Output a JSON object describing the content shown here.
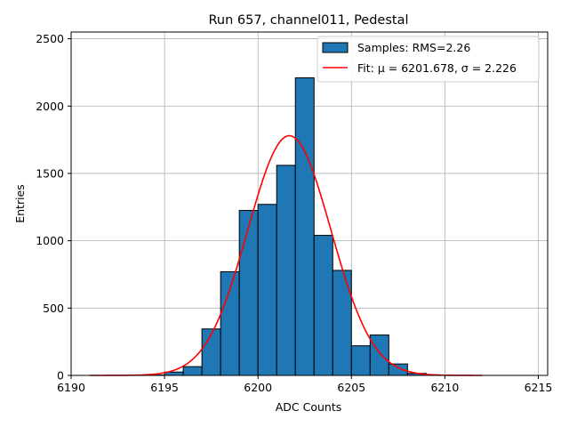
{
  "chart_data": {
    "type": "bar",
    "title": "Run 657, channel011, Pedestal",
    "xlabel": "ADC Counts",
    "ylabel": "Entries",
    "xlim": [
      6190,
      6215.5
    ],
    "ylim": [
      0,
      2550
    ],
    "xticks": [
      6190,
      6195,
      6200,
      6205,
      6210,
      6215
    ],
    "yticks": [
      0,
      500,
      1000,
      1500,
      2000,
      2500
    ],
    "grid": true,
    "legend_position": "top-right",
    "bin_width": 1,
    "bins": [
      {
        "left": 6191,
        "value": 0
      },
      {
        "left": 6192,
        "value": 0
      },
      {
        "left": 6193,
        "value": 0
      },
      {
        "left": 6194,
        "value": 3
      },
      {
        "left": 6195,
        "value": 25
      },
      {
        "left": 6196,
        "value": 65
      },
      {
        "left": 6197,
        "value": 345
      },
      {
        "left": 6198,
        "value": 770
      },
      {
        "left": 6199,
        "value": 1225
      },
      {
        "left": 6200,
        "value": 1270
      },
      {
        "left": 6201,
        "value": 1560
      },
      {
        "left": 6202,
        "value": 2210
      },
      {
        "left": 6203,
        "value": 1040
      },
      {
        "left": 6204,
        "value": 780
      },
      {
        "left": 6205,
        "value": 220
      },
      {
        "left": 6206,
        "value": 300
      },
      {
        "left": 6207,
        "value": 85
      },
      {
        "left": 6208,
        "value": 15
      },
      {
        "left": 6209,
        "value": 3
      },
      {
        "left": 6210,
        "value": 0
      },
      {
        "left": 6211,
        "value": 0
      }
    ],
    "fit": {
      "mu": 6201.678,
      "sigma": 2.226,
      "amplitude": 1780,
      "x_range": [
        6191,
        6212
      ]
    },
    "series": [
      {
        "name": "Samples: RMS=2.26",
        "kind": "histogram",
        "color": "#1f77b4"
      },
      {
        "name": "Fit: μ = 6201.678, σ = 2.226",
        "kind": "line",
        "color": "#ff0000"
      }
    ]
  }
}
